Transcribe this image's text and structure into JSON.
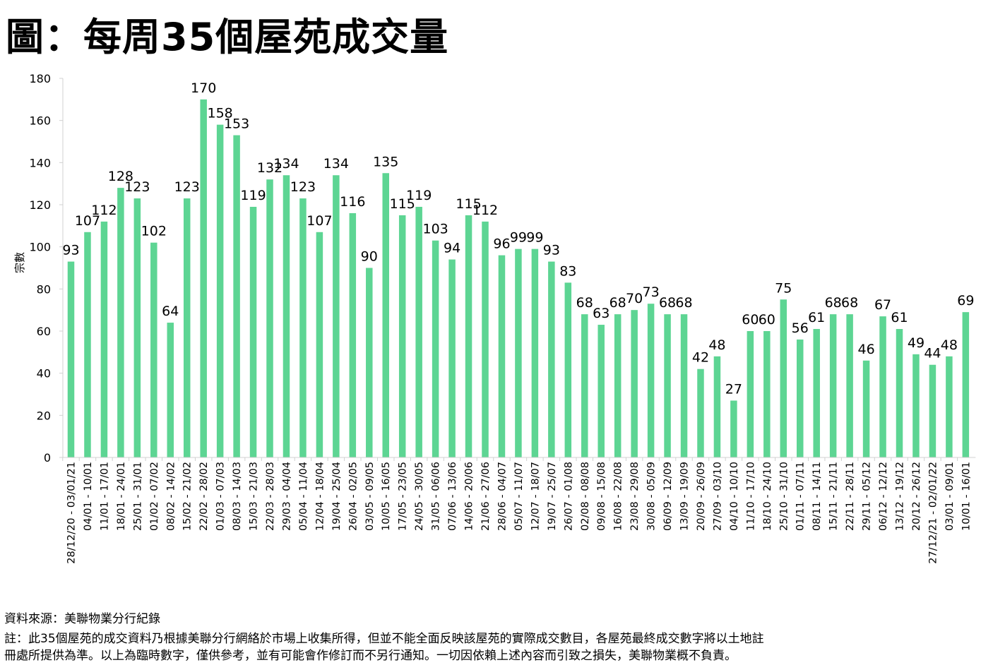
{
  "title": "圖：每周35個屋苑成交量",
  "footnotes": {
    "source": "資料來源：美聯物業分行紀錄",
    "note1": "註：此35個屋苑的成交資料乃根據美聯分行網絡於市場上收集所得，但並不能全面反映該屋苑的實際成交數目，各屋苑最終成交數字將以土地註",
    "note2": "冊處所提供為準。以上為臨時數字，僅供參考，並有可能會作修訂而不另行通知。一切因依賴上述內容而引致之損失，美聯物業概不負責。"
  },
  "chart_data": {
    "type": "bar",
    "title": "",
    "xlabel": "",
    "ylabel": "宗數",
    "ylim": [
      0,
      180
    ],
    "yticks": [
      0,
      20,
      40,
      60,
      80,
      100,
      120,
      140,
      160,
      180
    ],
    "grid": false,
    "bar_color": "#5dd593",
    "categories": [
      "28/12/20 - 03/01/21",
      "04/01 - 10/01",
      "11/01 - 17/01",
      "18/01 - 24/01",
      "25/01 - 31/01",
      "01/02 - 07/02",
      "08/02 - 14/02",
      "15/02 - 21/02",
      "22/02 - 28/02",
      "01/03 - 07/03",
      "08/03 - 14/03",
      "15/03 - 21/03",
      "22/03 - 28/03",
      "29/03 - 04/04",
      "05/04 - 11/04",
      "12/04 - 18/04",
      "19/04 - 25/04",
      "26/04 - 02/05",
      "03/05 - 09/05",
      "10/05 - 16/05",
      "17/05 - 23/05",
      "24/05 - 30/05",
      "31/05 - 06/06",
      "07/06 - 13/06",
      "14/06 - 20/06",
      "21/06 - 27/06",
      "28/06 - 04/07",
      "05/07 - 11/07",
      "12/07 - 18/07",
      "19/07 - 25/07",
      "26/07 - 01/08",
      "02/08 - 08/08",
      "09/08 - 15/08",
      "16/08 - 22/08",
      "23/08 - 29/08",
      "30/08 - 05/09",
      "06/09 - 12/09",
      "13/09 - 19/09",
      "20/09 - 26/09",
      "27/09 - 03/10",
      "04/10 - 10/10",
      "11/10 - 17/10",
      "18/10 - 24/10",
      "25/10 - 31/10",
      "01/11 - 07/11",
      "08/11 - 14/11",
      "15/11 - 21/11",
      "22/11 - 28/11",
      "29/11 - 05/12",
      "06/12 - 12/12",
      "13/12 - 19/12",
      "20/12 - 26/12",
      "27/12/21 - 02/01/22",
      "03/01 - 09/01",
      "10/01 - 16/01"
    ],
    "values": [
      93,
      107,
      112,
      128,
      123,
      102,
      64,
      123,
      170,
      158,
      153,
      119,
      132,
      134,
      123,
      107,
      134,
      116,
      90,
      135,
      115,
      119,
      103,
      94,
      115,
      112,
      96,
      99,
      99,
      93,
      83,
      68,
      63,
      68,
      70,
      73,
      68,
      68,
      42,
      48,
      27,
      60,
      60,
      75,
      56,
      61,
      68,
      68,
      46,
      67,
      61,
      49,
      44,
      48,
      69
    ]
  }
}
